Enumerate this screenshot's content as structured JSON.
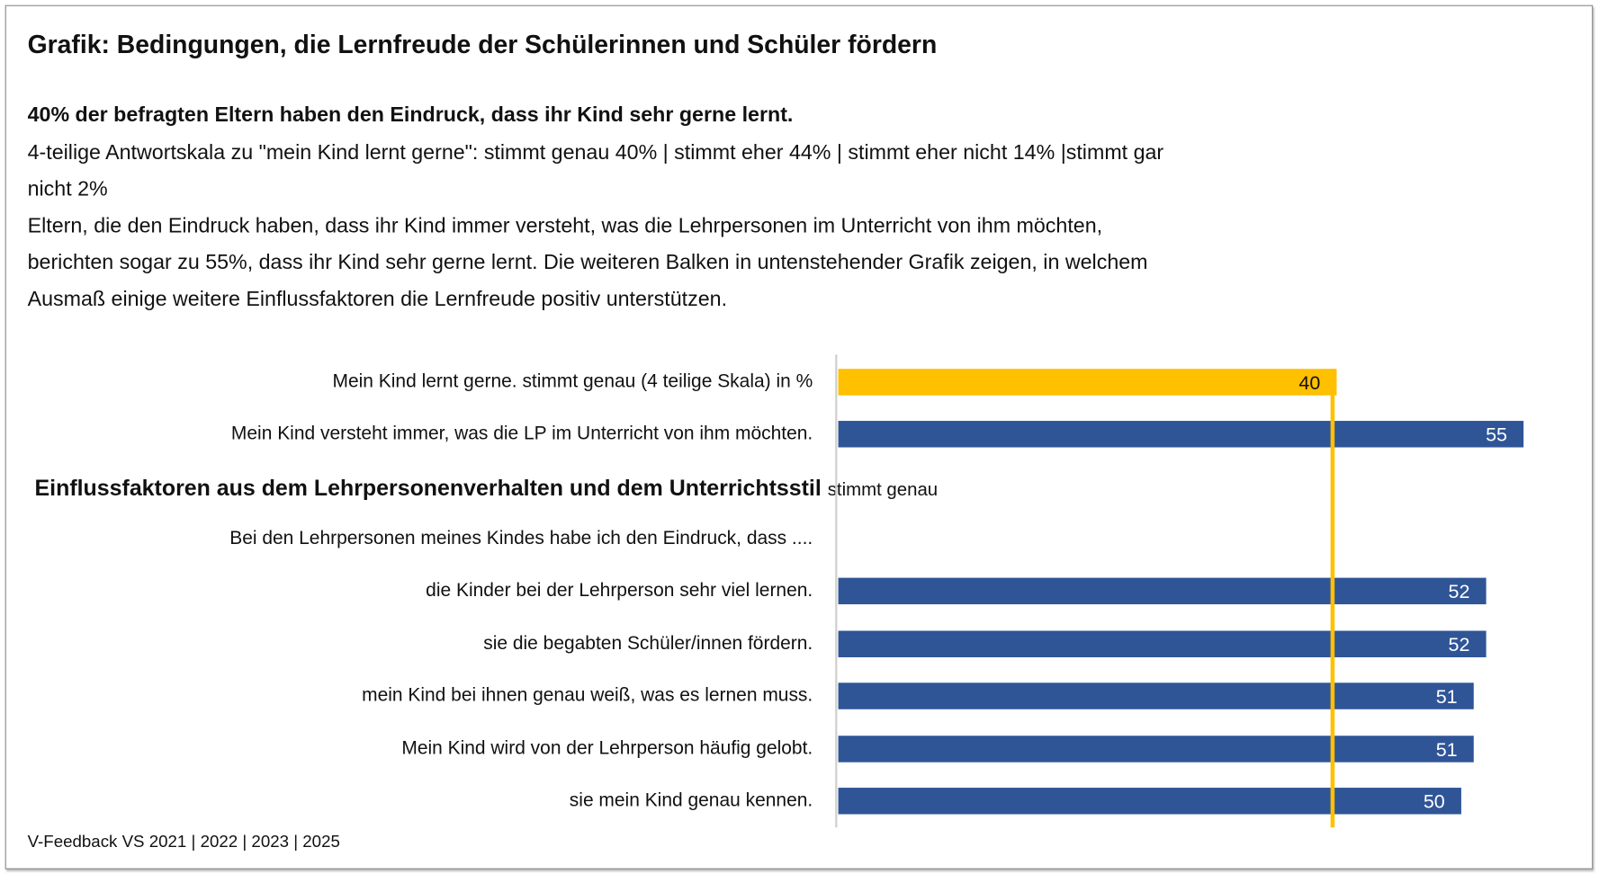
{
  "title": "Grafik: Bedingungen, die Lernfreude der Schülerinnen und Schüler fördern",
  "subtitle": "40% der befragten Eltern haben den Eindruck, dass ihr Kind sehr gerne lernt.",
  "body_lines": [
    "4-teilige Antwortskala zu \"mein Kind lernt gerne\": stimmt genau 40% | stimmt eher 44% | stimmt eher nicht 14% |stimmt gar",
    "nicht 2%",
    "Eltern, die den  Eindruck haben, dass ihr Kind immer versteht, was die Lehrpersonen im Unterricht von ihm möchten,",
    "berichten sogar zu 55%, dass ihr Kind sehr gerne lernt. Die weiteren Balken in untenstehender Grafik zeigen, in welchem",
    "Ausmaß einige weitere Einflussfaktoren die Lernfreude positiv unterstützen."
  ],
  "section_heading": "Einflussfaktoren aus dem Lehrpersonenverhalten und dem Unterrichtsstil",
  "section_heading_suffix": "stimmt genau",
  "intro_label": "Bei den Lehrpersonen meines Kindes habe ich den Eindruck, dass ....",
  "footer": "V-Feedback VS 2021 | 2022 | 2023 | 2025",
  "colors": {
    "reference": "#FFC000",
    "bars": "#2F5597",
    "axis": "#d0d0d0"
  },
  "chart_data": {
    "type": "bar",
    "orientation": "horizontal",
    "xlim": [
      0,
      55
    ],
    "reference_line": 40,
    "categories": [
      "Mein Kind lernt gerne. stimmt genau (4 teilige Skala) in %",
      "Mein Kind versteht immer, was die LP im Unterricht von ihm möchten.",
      "die Kinder bei der Lehrperson sehr viel lernen.",
      "sie die begabten Schüler/innen fördern.",
      "mein Kind bei ihnen genau weiß, was es lernen muss.",
      "Mein Kind wird von der Lehrperson häufig gelobt.",
      "sie mein Kind genau kennen."
    ],
    "values": [
      40,
      55,
      52,
      52,
      51,
      51,
      50
    ],
    "data_labels": [
      "40",
      "55",
      "52",
      "52",
      "51",
      "51",
      "50"
    ]
  }
}
